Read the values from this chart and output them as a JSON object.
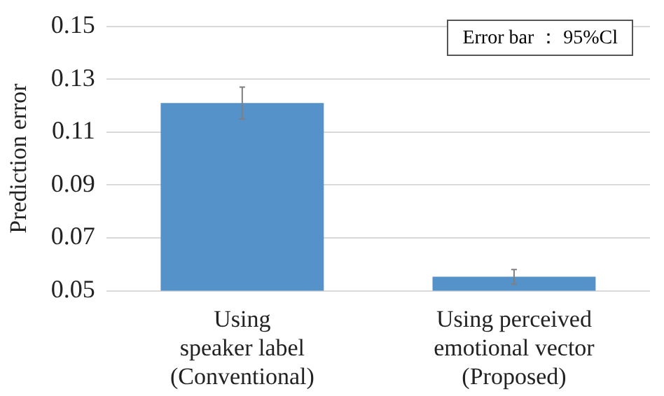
{
  "chart_data": {
    "type": "bar",
    "ylabel": "Prediction error",
    "categories": [
      "Using\nspeaker label\n(Conventional)",
      "Using perceived\nemotional vector\n(Proposed)"
    ],
    "values": [
      0.121,
      0.0553
    ],
    "color": "#5592c9",
    "errors": [
      [
        0.115,
        0.127
      ],
      [
        0.0525,
        0.058
      ]
    ],
    "ylim": [
      0.05,
      0.15
    ],
    "yticks": [
      0.05,
      0.07,
      0.09,
      0.11,
      0.13,
      0.15
    ],
    "grid": "y",
    "annotations": [
      "Error bar ： 95%Cl"
    ]
  }
}
